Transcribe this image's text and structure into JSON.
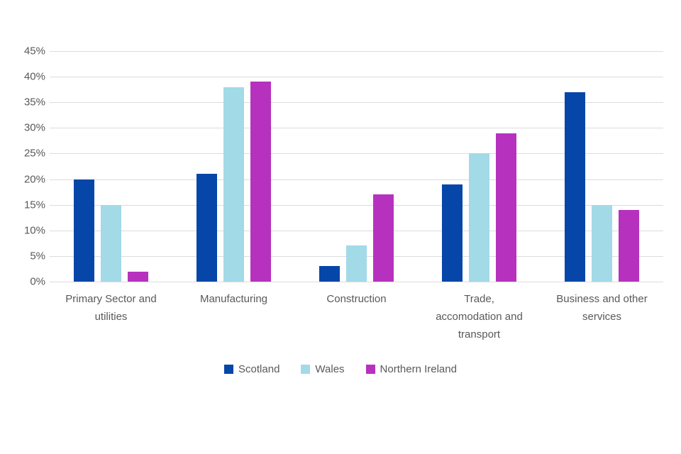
{
  "chart_data": {
    "type": "bar",
    "title": "",
    "xlabel": "",
    "ylabel": "",
    "ylim": [
      0,
      45
    ],
    "ytick_step": 5,
    "ytick_labels": [
      "45%",
      "40%",
      "35%",
      "30%",
      "25%",
      "20%",
      "15%",
      "10%",
      "5%",
      "0%"
    ],
    "grid": true,
    "legend_position": "bottom",
    "categories": [
      "Primary Sector and utilities",
      "Manufacturing",
      "Construction",
      "Trade, accomodation and transport",
      "Business and other services"
    ],
    "category_lines": [
      [
        "Primary Sector and",
        "utilities"
      ],
      [
        "Manufacturing"
      ],
      [
        "Construction"
      ],
      [
        "Trade,",
        "accomodation and",
        "transport"
      ],
      [
        "Business and other",
        "services"
      ]
    ],
    "series": [
      {
        "name": "Scotland",
        "color": "#0546a8",
        "values": [
          20,
          21,
          3,
          19,
          37
        ]
      },
      {
        "name": "Wales",
        "color": "#a2dae8",
        "values": [
          15,
          38,
          7,
          25,
          15
        ]
      },
      {
        "name": "Northern Ireland",
        "color": "#b632be",
        "values": [
          2,
          39,
          17,
          29,
          14
        ]
      }
    ],
    "colors": {
      "gridline": "#dcdcdc",
      "tick_text": "#595959",
      "category_text": "#595959",
      "legend_text": "#595959",
      "background": "#ffffff"
    }
  }
}
